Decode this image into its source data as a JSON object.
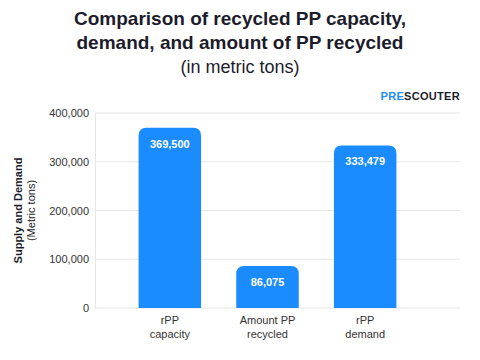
{
  "chart_data": {
    "type": "bar",
    "title": "Comparison of recycled PP capacity, demand, and amount of PP recycled",
    "subtitle": "(in metric tons)",
    "ylabel": "Supply and Demand (Metric tons)",
    "annotations": [
      "PRESCOUTER"
    ],
    "categories": [
      "rPP capacity",
      "Amount PP recycled",
      "rPP demand"
    ],
    "values": [
      369500,
      86075,
      333479
    ],
    "value_labels": [
      "369,500",
      "86,075",
      "333,479"
    ],
    "color": "#1a8cff",
    "ylim": [
      0,
      400000
    ],
    "yticks": [
      0,
      {
        "value": 100000,
        "label": "100,000"
      },
      {
        "value": 200000,
        "label": "200,000"
      },
      {
        "value": 300000,
        "label": "300,000"
      },
      {
        "value": 400000,
        "label": "400,000"
      }
    ],
    "grid": true,
    "data_labels": true
  }
}
